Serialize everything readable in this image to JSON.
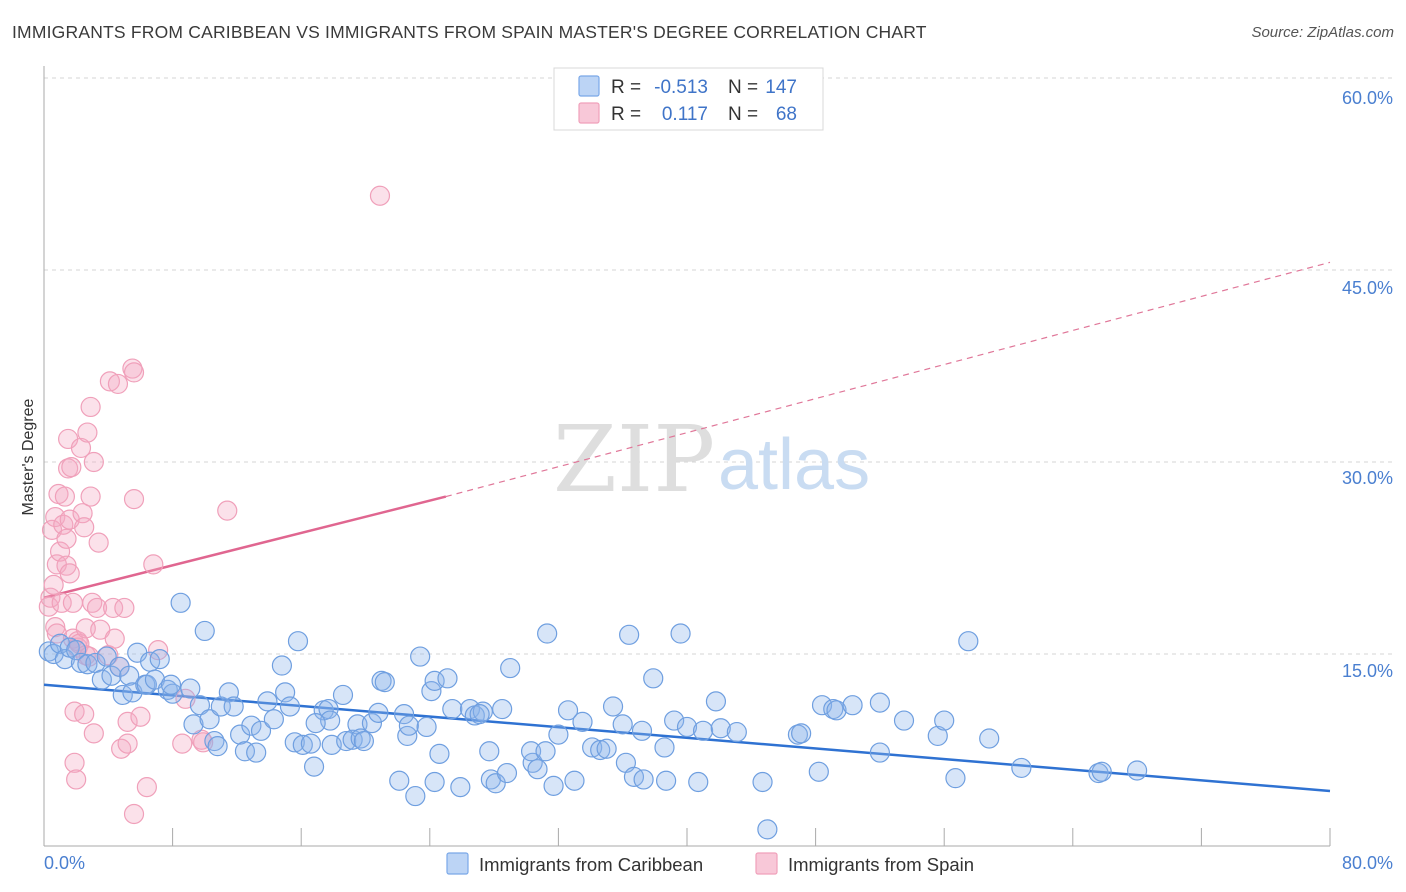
{
  "title": "IMMIGRANTS FROM CARIBBEAN VS IMMIGRANTS FROM SPAIN MASTER'S DEGREE CORRELATION CHART",
  "source": "Source: ZipAtlas.com",
  "watermark": {
    "zip": "ZIP",
    "atlas": "atlas"
  },
  "legend": {
    "r_label": "R =",
    "n_label": "N =",
    "caribbean": {
      "r": "-0.513",
      "n": "147",
      "color": "#7aa8e8"
    },
    "spain": {
      "r": "0.117",
      "n": "68",
      "color": "#f0a0ba"
    }
  },
  "bottom_legend": {
    "caribbean": "Immigrants from Caribbean",
    "spain": "Immigrants from Spain"
  },
  "chart_data": {
    "type": "scatter",
    "ylabel": "Master's Degree",
    "xlim": [
      0,
      80
    ],
    "ylim": [
      0,
      63
    ],
    "x_tick_labels": {
      "left": "0.0%",
      "right": "80.0%"
    },
    "y_ticks": [
      {
        "value": 15,
        "label": "15.0%"
      },
      {
        "value": 30,
        "label": "30.0%"
      },
      {
        "value": 45,
        "label": "45.0%"
      },
      {
        "value": 60,
        "label": "60.0%"
      }
    ],
    "grid": "horizontal-dashed",
    "series": [
      {
        "name": "Immigrants from Caribbean",
        "color": "#5b8fd8",
        "points": [
          [
            0.3,
            15.2
          ],
          [
            0.6,
            15.0
          ],
          [
            1.0,
            15.8
          ],
          [
            1.3,
            14.6
          ],
          [
            1.6,
            15.5
          ],
          [
            2.0,
            15.3
          ],
          [
            2.3,
            14.3
          ],
          [
            2.7,
            14.2
          ],
          [
            3.2,
            14.3
          ],
          [
            3.6,
            13.0
          ],
          [
            3.9,
            14.8
          ],
          [
            4.2,
            13.3
          ],
          [
            4.7,
            14.0
          ],
          [
            4.9,
            11.8
          ],
          [
            5.3,
            13.3
          ],
          [
            5.5,
            12.0
          ],
          [
            5.8,
            15.1
          ],
          [
            6.3,
            12.6
          ],
          [
            6.4,
            12.6
          ],
          [
            6.6,
            14.4
          ],
          [
            6.9,
            13.0
          ],
          [
            7.2,
            14.6
          ],
          [
            7.7,
            12.2
          ],
          [
            8.0,
            11.9
          ],
          [
            8.5,
            19.0
          ],
          [
            9.1,
            12.3
          ],
          [
            9.3,
            9.5
          ],
          [
            9.7,
            11.0
          ],
          [
            10.0,
            16.8
          ],
          [
            10.3,
            9.9
          ],
          [
            10.6,
            8.2
          ],
          [
            10.8,
            7.8
          ],
          [
            11.0,
            10.9
          ],
          [
            11.5,
            12.0
          ],
          [
            11.8,
            10.9
          ],
          [
            12.2,
            8.7
          ],
          [
            12.5,
            7.4
          ],
          [
            12.9,
            9.4
          ],
          [
            13.2,
            7.3
          ],
          [
            13.5,
            9.0
          ],
          [
            13.9,
            11.3
          ],
          [
            14.3,
            9.9
          ],
          [
            14.8,
            14.1
          ],
          [
            15.0,
            12.0
          ],
          [
            15.3,
            10.9
          ],
          [
            15.6,
            8.1
          ],
          [
            15.8,
            16.0
          ],
          [
            16.1,
            7.9
          ],
          [
            16.6,
            8.0
          ],
          [
            16.8,
            6.2
          ],
          [
            17.4,
            10.6
          ],
          [
            17.7,
            10.7
          ],
          [
            17.8,
            9.8
          ],
          [
            17.9,
            7.9
          ],
          [
            18.6,
            11.8
          ],
          [
            18.8,
            8.2
          ],
          [
            19.2,
            8.3
          ],
          [
            19.5,
            9.5
          ],
          [
            19.7,
            8.4
          ],
          [
            19.9,
            8.2
          ],
          [
            20.4,
            9.6
          ],
          [
            20.8,
            10.4
          ],
          [
            21.0,
            12.9
          ],
          [
            21.2,
            12.8
          ],
          [
            22.1,
            5.1
          ],
          [
            22.4,
            10.3
          ],
          [
            22.6,
            8.6
          ],
          [
            22.7,
            9.4
          ],
          [
            23.1,
            3.9
          ],
          [
            23.4,
            14.8
          ],
          [
            23.8,
            9.3
          ],
          [
            24.1,
            12.1
          ],
          [
            24.3,
            12.9
          ],
          [
            24.3,
            5.0
          ],
          [
            24.6,
            7.2
          ],
          [
            25.1,
            13.1
          ],
          [
            25.4,
            10.7
          ],
          [
            25.9,
            4.6
          ],
          [
            26.5,
            10.7
          ],
          [
            26.8,
            10.2
          ],
          [
            27.3,
            10.5
          ],
          [
            27.7,
            7.4
          ],
          [
            27.8,
            5.2
          ],
          [
            28.1,
            4.9
          ],
          [
            28.5,
            10.7
          ],
          [
            28.8,
            5.7
          ],
          [
            29.0,
            13.9
          ],
          [
            30.4,
            6.5
          ],
          [
            30.3,
            7.4
          ],
          [
            30.7,
            6.0
          ],
          [
            31.2,
            7.4
          ],
          [
            31.3,
            16.6
          ],
          [
            31.7,
            4.7
          ],
          [
            32.0,
            8.7
          ],
          [
            32.6,
            10.6
          ],
          [
            33.0,
            5.1
          ],
          [
            33.5,
            9.7
          ],
          [
            34.1,
            7.7
          ],
          [
            34.6,
            7.5
          ],
          [
            35.0,
            7.6
          ],
          [
            35.4,
            10.9
          ],
          [
            36.0,
            9.5
          ],
          [
            36.2,
            6.5
          ],
          [
            36.4,
            16.5
          ],
          [
            36.7,
            5.4
          ],
          [
            37.3,
            5.2
          ],
          [
            37.9,
            13.1
          ],
          [
            37.2,
            9.0
          ],
          [
            38.7,
            5.1
          ],
          [
            39.2,
            9.8
          ],
          [
            39.6,
            16.6
          ],
          [
            40.0,
            9.3
          ],
          [
            40.7,
            5.0
          ],
          [
            41.0,
            9.0
          ],
          [
            41.8,
            11.3
          ],
          [
            42.1,
            9.2
          ],
          [
            43.1,
            8.9
          ],
          [
            44.7,
            5.0
          ],
          [
            46.9,
            8.7
          ],
          [
            47.1,
            8.8
          ],
          [
            48.2,
            5.8
          ],
          [
            48.4,
            11.0
          ],
          [
            49.1,
            10.7
          ],
          [
            49.3,
            10.6
          ],
          [
            50.3,
            11.0
          ],
          [
            52.0,
            7.3
          ],
          [
            53.5,
            9.8
          ],
          [
            55.6,
            8.6
          ],
          [
            56.0,
            9.8
          ],
          [
            56.7,
            5.3
          ],
          [
            57.5,
            16.0
          ],
          [
            58.8,
            8.4
          ],
          [
            60.8,
            6.1
          ],
          [
            65.6,
            5.7
          ],
          [
            65.8,
            5.8
          ],
          [
            68.0,
            5.9
          ],
          [
            45.0,
            1.3
          ],
          [
            38.6,
            7.7
          ],
          [
            27.1,
            10.3
          ],
          [
            16.9,
            9.6
          ],
          [
            7.9,
            12.6
          ],
          [
            52.0,
            11.2
          ]
        ],
        "trend": {
          "x0": 0,
          "y0": 12.6,
          "x1": 80,
          "y1": 4.3,
          "style": "solid"
        }
      },
      {
        "name": "Immigrants from Spain",
        "color": "#ea7aa0",
        "points": [
          [
            0.3,
            18.7
          ],
          [
            0.4,
            19.4
          ],
          [
            0.5,
            24.7
          ],
          [
            0.6,
            20.4
          ],
          [
            0.7,
            17.1
          ],
          [
            0.7,
            25.7
          ],
          [
            0.8,
            22.0
          ],
          [
            0.8,
            16.6
          ],
          [
            0.9,
            27.5
          ],
          [
            1.0,
            23.0
          ],
          [
            1.1,
            19.0
          ],
          [
            1.2,
            25.1
          ],
          [
            1.3,
            27.3
          ],
          [
            1.4,
            24.0
          ],
          [
            1.4,
            21.9
          ],
          [
            1.5,
            31.8
          ],
          [
            1.5,
            29.5
          ],
          [
            1.6,
            25.5
          ],
          [
            1.6,
            21.3
          ],
          [
            1.7,
            29.6
          ],
          [
            1.8,
            16.2
          ],
          [
            1.8,
            19.0
          ],
          [
            1.9,
            6.5
          ],
          [
            1.9,
            10.5
          ],
          [
            2.0,
            5.2
          ],
          [
            2.1,
            16.0
          ],
          [
            2.1,
            15.5
          ],
          [
            2.2,
            15.8
          ],
          [
            2.3,
            31.1
          ],
          [
            2.4,
            26.0
          ],
          [
            2.5,
            24.9
          ],
          [
            2.5,
            10.3
          ],
          [
            2.6,
            14.9
          ],
          [
            2.6,
            17.0
          ],
          [
            2.7,
            32.3
          ],
          [
            2.8,
            14.8
          ],
          [
            2.9,
            27.3
          ],
          [
            2.9,
            34.3
          ],
          [
            3.0,
            19.0
          ],
          [
            3.1,
            30.0
          ],
          [
            3.1,
            8.8
          ],
          [
            3.3,
            18.6
          ],
          [
            3.4,
            23.7
          ],
          [
            3.5,
            16.9
          ],
          [
            4.0,
            14.9
          ],
          [
            4.1,
            36.3
          ],
          [
            4.3,
            18.6
          ],
          [
            4.4,
            16.2
          ],
          [
            4.6,
            36.1
          ],
          [
            4.7,
            14.0
          ],
          [
            4.8,
            7.6
          ],
          [
            5.0,
            18.6
          ],
          [
            5.2,
            9.7
          ],
          [
            5.2,
            8.0
          ],
          [
            5.5,
            37.3
          ],
          [
            5.6,
            2.5
          ],
          [
            5.6,
            27.1
          ],
          [
            5.6,
            37.0
          ],
          [
            6.0,
            10.1
          ],
          [
            6.4,
            4.6
          ],
          [
            6.8,
            22.0
          ],
          [
            7.1,
            15.3
          ],
          [
            8.6,
            8.0
          ],
          [
            8.8,
            11.5
          ],
          [
            9.8,
            8.3
          ],
          [
            9.9,
            8.1
          ],
          [
            11.4,
            26.2
          ],
          [
            20.9,
            50.8
          ]
        ],
        "trend": {
          "x0": 0,
          "y0": 19.4,
          "x1": 25.0,
          "y1": 27.3,
          "style": "solid",
          "extended_to": {
            "x": 80,
            "y": 45.6,
            "style": "dashed"
          }
        }
      }
    ]
  }
}
